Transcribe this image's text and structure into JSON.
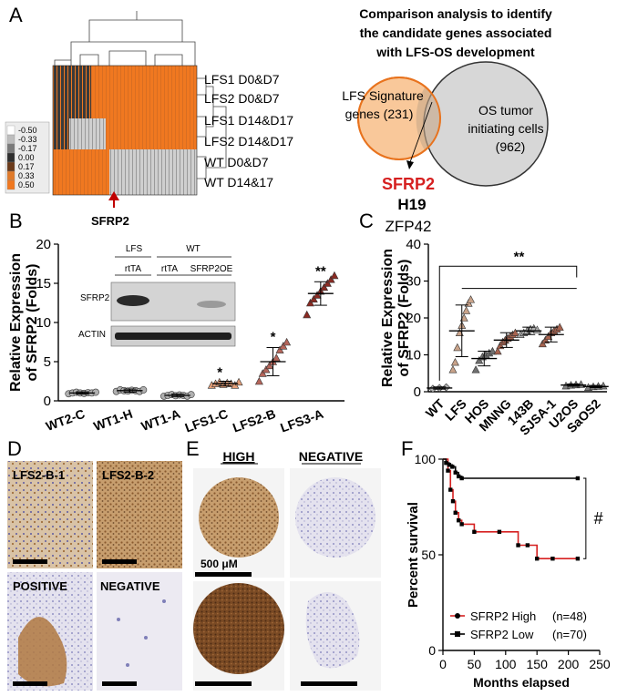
{
  "panels": {
    "A": {
      "letter": "A",
      "legend_values": [
        "-0.50",
        "-0.33",
        "-0.17",
        "0.00",
        "0.17",
        "0.33",
        "0.50"
      ],
      "legend_colors": [
        "#ffffff",
        "#bdbdbd",
        "#7a7a7a",
        "#2e2e2e",
        "#6a3a1a",
        "#e07a2a",
        "#f07820"
      ],
      "row_labels": [
        "LFS1 D0&D7",
        "LFS2 D0&D7",
        "LFS1 D14&D17",
        "LFS2 D14&D17",
        "WT D0&D7",
        "WT D14&17"
      ],
      "gene_label": "SFRP2",
      "title_lines": [
        "Comparison analysis to identify",
        "the candidate genes associated",
        "with LFS-OS development"
      ],
      "venn_left": [
        "LFS Signature",
        "genes (231)"
      ],
      "venn_right": [
        "OS tumor",
        "initiating cells",
        "(962)"
      ],
      "candidates": [
        "SFRP2",
        "H19",
        "ZFP42"
      ]
    },
    "B": {
      "letter": "B",
      "significance": [
        "*",
        "*",
        "**"
      ],
      "blot": {
        "group_labels": [
          "LFS",
          "WT"
        ],
        "lane_labels": [
          "rtTA",
          "rtTA",
          "SFRP2OE"
        ],
        "band_labels": [
          "SFRP2",
          "ACTIN"
        ]
      }
    },
    "C": {
      "letter": "C",
      "significance": "**"
    },
    "D": {
      "letter": "D",
      "tiles": [
        "LFS2-B-1",
        "LFS2-B-2",
        "POSITIVE",
        "NEGATIVE"
      ]
    },
    "E": {
      "letter": "E",
      "col_labels": [
        "HIGH",
        "NEGATIVE"
      ],
      "scale": "500 μM"
    },
    "F": {
      "letter": "F",
      "significance": "#",
      "legend": [
        {
          "label": "SFRP2 High",
          "n": "(n=48)",
          "color": "#d62020"
        },
        {
          "label": "SFRP2 Low",
          "n": "(n=70)",
          "color": "#000000"
        }
      ]
    }
  },
  "chart_data": [
    {
      "type": "scatter",
      "panel": "B",
      "title": "",
      "ylabel": "Relative Expression of SFRP2 (Folds)",
      "xlabel": "",
      "ylim": [
        0,
        20
      ],
      "yticks": [
        0,
        5,
        10,
        15,
        20
      ],
      "categories": [
        "WT2-C",
        "WT1-H",
        "WT1-A",
        "LFS1-C",
        "LFS2-B",
        "LFS3-A"
      ],
      "means": [
        1.0,
        1.3,
        0.7,
        2.2,
        5.0,
        13.7
      ],
      "sd": [
        0.15,
        0.2,
        0.15,
        0.3,
        1.8,
        1.5
      ],
      "points": [
        [
          0.9,
          1.0,
          1.1,
          1.0,
          0.95,
          1.05,
          1.0,
          1.1
        ],
        [
          1.2,
          1.4,
          1.3,
          1.25,
          1.35,
          1.3,
          1.2,
          1.4
        ],
        [
          0.6,
          0.7,
          0.8,
          0.65,
          0.75,
          0.7,
          0.6,
          0.8
        ],
        [
          2.0,
          2.2,
          2.4,
          2.1,
          2.3,
          2.2,
          2.0,
          2.4
        ],
        [
          2.5,
          3.5,
          4.0,
          4.5,
          5.0,
          5.5,
          6.5,
          7.0,
          7.5
        ],
        [
          11.0,
          12.5,
          13.0,
          13.5,
          14.0,
          14.5,
          15.0,
          15.5,
          16.0
        ]
      ],
      "colors": [
        "#b0b0b0",
        "#b0b0b0",
        "#b0b0b0",
        "#e6a07a",
        "#b5655a",
        "#8a2a22"
      ]
    },
    {
      "type": "scatter",
      "panel": "C",
      "title": "",
      "ylabel": "Relative Expression of SFRP2 (Folds)",
      "xlabel": "",
      "ylim": [
        0,
        40
      ],
      "yticks": [
        0,
        10,
        20,
        30,
        40
      ],
      "categories": [
        "WT",
        "LFS",
        "HOS",
        "MNNG",
        "143B",
        "SJSA-1",
        "U2OS",
        "SaOS2"
      ],
      "means": [
        1.0,
        16.5,
        9.0,
        14.0,
        16.5,
        15.5,
        1.8,
        1.4
      ],
      "sd": [
        0.3,
        7.0,
        2.0,
        2.0,
        1.0,
        2.0,
        0.3,
        0.3
      ],
      "points": [
        [
          0.8,
          1.0,
          1.2
        ],
        [
          6.0,
          8.0,
          12.0,
          16.0,
          18.0,
          20.0,
          22.0,
          24.0,
          25.0
        ],
        [
          6.0,
          8.5,
          9.5,
          10.0,
          10.5,
          11.0
        ],
        [
          11.0,
          12.5,
          13.5,
          14.0,
          14.5,
          15.0,
          15.5,
          16.0
        ],
        [
          15.5,
          16.0,
          16.5,
          17.0,
          17.2,
          16.8
        ],
        [
          13.0,
          14.0,
          15.0,
          16.0,
          16.5,
          17.0,
          17.5
        ],
        [
          1.6,
          1.8,
          1.9,
          2.0
        ],
        [
          1.2,
          1.4,
          1.5,
          1.6
        ]
      ],
      "colors": [
        "#b0b0b0",
        "#c9a38a",
        "#707070",
        "#a8634f",
        "#b0b0b0",
        "#a8634f",
        "#808080",
        "#808080"
      ]
    },
    {
      "type": "line",
      "panel": "F",
      "title": "",
      "ylabel": "Percent survival",
      "xlabel": "Months elapsed",
      "xlim": [
        0,
        250
      ],
      "ylim": [
        0,
        100
      ],
      "xticks": [
        0,
        50,
        100,
        150,
        200,
        250
      ],
      "yticks": [
        0,
        50,
        100
      ],
      "series": [
        {
          "name": "SFRP2 High",
          "color": "#d62020",
          "x": [
            0,
            8,
            12,
            16,
            20,
            25,
            30,
            50,
            90,
            120,
            135,
            150,
            175,
            215
          ],
          "y": [
            100,
            94,
            84,
            78,
            72,
            68,
            66,
            62,
            62,
            55,
            55,
            48,
            48,
            48
          ]
        },
        {
          "name": "SFRP2 Low",
          "color": "#000000",
          "x": [
            0,
            5,
            10,
            15,
            20,
            25,
            30,
            215
          ],
          "y": [
            100,
            98,
            97,
            96,
            93,
            91,
            90,
            90
          ]
        }
      ]
    }
  ]
}
